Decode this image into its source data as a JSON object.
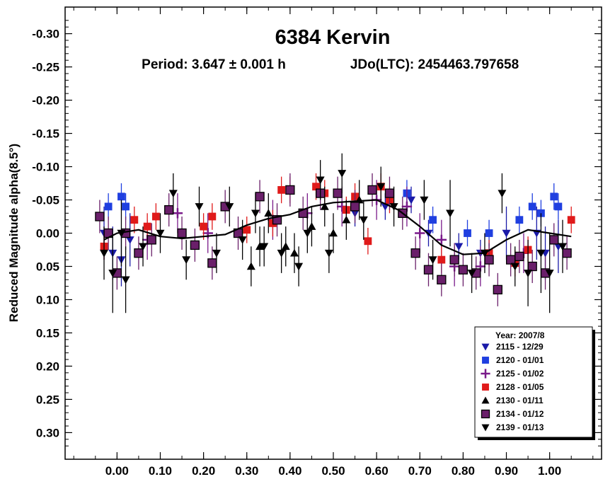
{
  "chart_data": {
    "type": "scatter",
    "title": "6384 Kervin",
    "subtitle_period": "Period: 3.647 ± 0.001 h",
    "subtitle_epoch": "JDo(LTC): 2454463.797658",
    "ylabel": "Reduced Magnitude alpha(8.5°)",
    "xlabel": "",
    "xlim": [
      -0.12,
      1.12
    ],
    "ylim": [
      -0.34,
      0.34
    ],
    "y_inverted": true,
    "x_ticks": [
      0.0,
      0.1,
      0.2,
      0.3,
      0.4,
      0.5,
      0.6,
      0.7,
      0.8,
      0.9,
      1.0
    ],
    "x_tick_labels": [
      "0.00",
      "0.10",
      "0.20",
      "0.30",
      "0.40",
      "0.50",
      "0.60",
      "0.70",
      "0.80",
      "0.90",
      "1.00"
    ],
    "y_ticks": [
      -0.3,
      -0.25,
      -0.2,
      -0.15,
      -0.1,
      -0.05,
      0.0,
      0.05,
      0.1,
      0.15,
      0.2,
      0.25,
      0.3
    ],
    "y_tick_labels": [
      "-0.30",
      "-0.25",
      "-0.20",
      "-0.15",
      "-0.10",
      "-0.05",
      "0.00",
      "0.05",
      "0.10",
      "0.15",
      "0.20",
      "0.25",
      "0.30"
    ],
    "legend": {
      "title": "Year: 2007/8",
      "position": "bottom-right",
      "entries": [
        {
          "label": "2115 - 12/29",
          "marker": "triangle-down",
          "color": "#1a1aa8"
        },
        {
          "label": "2120 - 01/01",
          "marker": "square",
          "color": "#1f3fe0"
        },
        {
          "label": "2125 - 01/02",
          "marker": "plus",
          "color": "#7a1a8a"
        },
        {
          "label": "2128 - 01/05",
          "marker": "square",
          "color": "#e01a1a"
        },
        {
          "label": "2130 - 01/11",
          "marker": "triangle-up",
          "color": "#000000"
        },
        {
          "label": "2134 - 01/12",
          "marker": "square-outlined",
          "color": "#6a1f6a"
        },
        {
          "label": "2139 - 01/13",
          "marker": "triangle-down",
          "color": "#000000"
        }
      ]
    },
    "fit_curve": {
      "x": [
        -0.03,
        0.0,
        0.05,
        0.1,
        0.15,
        0.2,
        0.25,
        0.3,
        0.35,
        0.4,
        0.45,
        0.5,
        0.55,
        0.6,
        0.65,
        0.7,
        0.75,
        0.8,
        0.85,
        0.9,
        0.95,
        1.0,
        1.05
      ],
      "y": [
        0.01,
        0.0,
        -0.005,
        0.005,
        0.008,
        0.005,
        0.002,
        -0.012,
        -0.022,
        -0.028,
        -0.04,
        -0.046,
        -0.048,
        -0.05,
        -0.035,
        -0.01,
        0.018,
        0.032,
        0.03,
        0.01,
        -0.005,
        0.0,
        0.005
      ]
    },
    "series": [
      {
        "name": "2115 - 12/29",
        "marker": "triangle-down",
        "color": "#1a1aa8",
        "x": [
          -0.03,
          -0.01,
          0.01,
          0.03,
          0.55,
          0.62,
          0.68,
          0.72,
          0.79,
          0.84,
          0.9,
          0.97,
          0.99,
          1.02
        ],
        "y": [
          0.0,
          0.03,
          0.04,
          0.01,
          -0.03,
          -0.04,
          -0.05,
          0.0,
          0.02,
          0.03,
          0.0,
          0.0,
          0.03,
          0.02
        ],
        "err": [
          0.04,
          0.04,
          0.04,
          0.04,
          0.02,
          0.02,
          0.02,
          0.02,
          0.02,
          0.02,
          0.04,
          0.04,
          0.04,
          0.04
        ]
      },
      {
        "name": "2120 - 01/01",
        "marker": "square",
        "color": "#1f3fe0",
        "x": [
          -0.02,
          0.01,
          0.02,
          0.67,
          0.73,
          0.81,
          0.86,
          0.93,
          0.96,
          0.98,
          1.01,
          1.02
        ],
        "y": [
          -0.04,
          -0.055,
          -0.04,
          -0.06,
          -0.02,
          0.0,
          0.0,
          -0.02,
          -0.04,
          -0.03,
          -0.055,
          -0.04
        ],
        "err": [
          0.02,
          0.02,
          0.02,
          0.02,
          0.02,
          0.02,
          0.02,
          0.02,
          0.02,
          0.02,
          0.02,
          0.02
        ]
      },
      {
        "name": "2125 - 01/02",
        "marker": "plus",
        "color": "#7a1a8a",
        "x": [
          0.07,
          0.14,
          0.21,
          0.36,
          0.44,
          0.52,
          0.6,
          0.67,
          0.7,
          0.75,
          0.78,
          0.84,
          0.94
        ],
        "y": [
          0.01,
          -0.03,
          0.0,
          -0.02,
          -0.03,
          -0.04,
          -0.05,
          -0.04,
          0.0,
          0.01,
          0.05,
          0.05,
          0.03
        ],
        "err": [
          0.03,
          0.03,
          0.03,
          0.03,
          0.03,
          0.03,
          0.03,
          0.03,
          0.03,
          0.03,
          0.03,
          0.03,
          0.03
        ]
      },
      {
        "name": "2128 - 01/05",
        "marker": "square",
        "color": "#e01a1a",
        "x": [
          -0.03,
          0.04,
          0.07,
          0.09,
          0.2,
          0.22,
          0.3,
          0.36,
          0.38,
          0.4,
          0.46,
          0.48,
          0.53,
          0.55,
          0.58,
          0.61,
          0.63,
          0.75,
          0.86,
          0.92,
          0.95,
          1.05
        ],
        "y": [
          0.02,
          -0.02,
          -0.01,
          -0.025,
          -0.01,
          -0.025,
          -0.005,
          -0.015,
          -0.065,
          -0.065,
          -0.07,
          -0.06,
          -0.035,
          -0.055,
          0.012,
          -0.07,
          -0.05,
          0.04,
          0.03,
          0.045,
          0.025,
          -0.02
        ],
        "err": [
          0.02,
          0.02,
          0.02,
          0.02,
          0.02,
          0.02,
          0.02,
          0.02,
          0.02,
          0.02,
          0.02,
          0.02,
          0.02,
          0.02,
          0.02,
          0.02,
          0.02,
          0.02,
          0.02,
          0.02,
          0.02,
          0.02
        ]
      },
      {
        "name": "2130 - 01/11",
        "marker": "triangle-up",
        "color": "#000000",
        "x": [
          0.31,
          0.33,
          0.35,
          0.39,
          0.41,
          0.45,
          0.48,
          0.5,
          0.53,
          0.56
        ],
        "y": [
          0.05,
          0.02,
          -0.03,
          0.02,
          0.03,
          -0.01,
          -0.04,
          0.0,
          -0.02,
          -0.05
        ],
        "err": [
          0.03,
          0.03,
          0.03,
          0.03,
          0.03,
          0.03,
          0.03,
          0.03,
          0.03,
          0.03
        ]
      },
      {
        "name": "2134 - 01/12",
        "marker": "square-outlined",
        "color": "#6a1f6a",
        "x": [
          -0.04,
          -0.02,
          0.0,
          0.02,
          0.05,
          0.08,
          0.12,
          0.15,
          0.18,
          0.22,
          0.25,
          0.28,
          0.33,
          0.37,
          0.4,
          0.43,
          0.47,
          0.51,
          0.55,
          0.59,
          0.63,
          0.66,
          0.69,
          0.72,
          0.75,
          0.78,
          0.8,
          0.83,
          0.86,
          0.88,
          0.91,
          0.93,
          0.96,
          0.99,
          1.01,
          1.04
        ],
        "y": [
          -0.025,
          0.0,
          0.06,
          0.0,
          0.03,
          0.01,
          -0.035,
          0.0,
          0.018,
          0.045,
          -0.04,
          0.0,
          -0.055,
          -0.02,
          -0.065,
          -0.03,
          -0.06,
          -0.06,
          -0.04,
          -0.065,
          -0.06,
          -0.03,
          0.03,
          0.055,
          0.07,
          0.04,
          0.055,
          0.06,
          0.04,
          0.085,
          0.04,
          0.035,
          0.05,
          0.06,
          0.01,
          0.03
        ],
        "err": [
          0.025,
          0.025,
          0.025,
          0.025,
          0.025,
          0.025,
          0.025,
          0.025,
          0.025,
          0.025,
          0.025,
          0.025,
          0.025,
          0.025,
          0.025,
          0.025,
          0.025,
          0.025,
          0.025,
          0.025,
          0.025,
          0.025,
          0.025,
          0.025,
          0.025,
          0.025,
          0.025,
          0.025,
          0.025,
          0.025,
          0.025,
          0.025,
          0.025,
          0.025,
          0.025,
          0.025
        ]
      },
      {
        "name": "2139 - 01/13",
        "marker": "triangle-down",
        "color": "#000000",
        "x": [
          -0.03,
          -0.01,
          0.01,
          0.02,
          0.06,
          0.1,
          0.13,
          0.16,
          0.19,
          0.23,
          0.26,
          0.29,
          0.32,
          0.34,
          0.38,
          0.42,
          0.44,
          0.47,
          0.49,
          0.52,
          0.57,
          0.61,
          0.64,
          0.71,
          0.73,
          0.77,
          0.82,
          0.85,
          0.89,
          0.92,
          0.95,
          0.98,
          1.0,
          1.03
        ],
        "y": [
          0.03,
          0.06,
          0.0,
          0.07,
          0.02,
          0.0,
          -0.06,
          0.04,
          -0.04,
          0.03,
          -0.04,
          0.01,
          -0.03,
          0.02,
          0.03,
          0.05,
          0.0,
          -0.08,
          0.03,
          -0.09,
          -0.02,
          -0.07,
          -0.04,
          -0.05,
          0.04,
          -0.03,
          0.06,
          0.03,
          -0.06,
          0.05,
          0.06,
          0.03,
          0.06,
          0.02
        ],
        "err": [
          0.04,
          0.06,
          0.05,
          0.05,
          0.03,
          0.03,
          0.03,
          0.03,
          0.03,
          0.03,
          0.03,
          0.03,
          0.03,
          0.03,
          0.03,
          0.03,
          0.03,
          0.03,
          0.03,
          0.03,
          0.03,
          0.03,
          0.03,
          0.03,
          0.03,
          0.05,
          0.03,
          0.03,
          0.03,
          0.03,
          0.05,
          0.06,
          0.06,
          0.04
        ]
      }
    ]
  }
}
